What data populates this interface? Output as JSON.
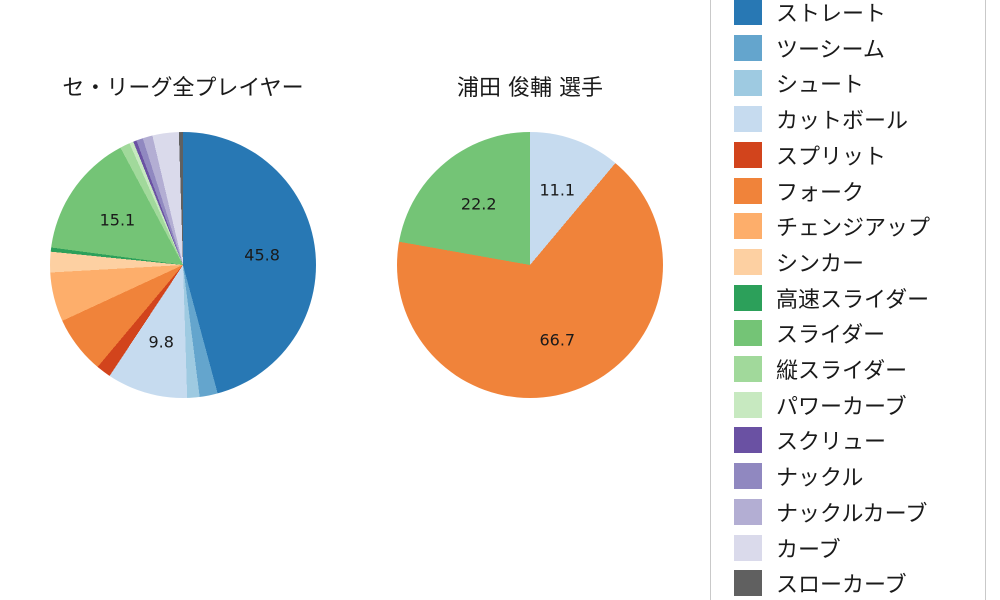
{
  "chart_data": [
    {
      "type": "pie",
      "title": "セ・リーグ全プレイヤー",
      "direction": "clockwise",
      "start_angle": "top",
      "slices": [
        {
          "label": "ストレート",
          "value": 45.8,
          "pct_label": "45.8"
        },
        {
          "label": "ツーシーム",
          "value": 2.2
        },
        {
          "label": "シュート",
          "value": 1.5
        },
        {
          "label": "カットボール",
          "value": 9.8,
          "pct_label": "9.8"
        },
        {
          "label": "スプリット",
          "value": 1.8
        },
        {
          "label": "フォーク",
          "value": 7.0
        },
        {
          "label": "チェンジアップ",
          "value": 6.0
        },
        {
          "label": "シンカー",
          "value": 2.5
        },
        {
          "label": "高速スライダー",
          "value": 0.5
        },
        {
          "label": "スライダー",
          "value": 15.1,
          "pct_label": "15.1"
        },
        {
          "label": "縦スライダー",
          "value": 1.2
        },
        {
          "label": "パワーカーブ",
          "value": 0.5
        },
        {
          "label": "スクリュー",
          "value": 0.4
        },
        {
          "label": "ナックル",
          "value": 0.8
        },
        {
          "label": "ナックルカーブ",
          "value": 1.2
        },
        {
          "label": "カーブ",
          "value": 3.2
        },
        {
          "label": "スローカーブ",
          "value": 0.5
        }
      ]
    },
    {
      "type": "pie",
      "title": "浦田 俊輔 選手",
      "direction": "clockwise",
      "start_angle": "top",
      "slices": [
        {
          "label": "カットボール",
          "value": 11.1,
          "pct_label": "11.1"
        },
        {
          "label": "フォーク",
          "value": 66.7,
          "pct_label": "66.7"
        },
        {
          "label": "スライダー",
          "value": 22.2,
          "pct_label": "22.2"
        }
      ]
    }
  ],
  "legend": {
    "position": "right",
    "items": [
      {
        "label": "ストレート",
        "color": "#2878b4"
      },
      {
        "label": "ツーシーム",
        "color": "#64a5cd"
      },
      {
        "label": "シュート",
        "color": "#9ecae1"
      },
      {
        "label": "カットボール",
        "color": "#c6dbef"
      },
      {
        "label": "スプリット",
        "color": "#d2441c"
      },
      {
        "label": "フォーク",
        "color": "#f0833a"
      },
      {
        "label": "チェンジアップ",
        "color": "#fdae6b"
      },
      {
        "label": "シンカー",
        "color": "#fdd0a2"
      },
      {
        "label": "高速スライダー",
        "color": "#2ca05a"
      },
      {
        "label": "スライダー",
        "color": "#74c476"
      },
      {
        "label": "縦スライダー",
        "color": "#a1d99b"
      },
      {
        "label": "パワーカーブ",
        "color": "#c7e9c0"
      },
      {
        "label": "スクリュー",
        "color": "#6a51a3"
      },
      {
        "label": "ナックル",
        "color": "#9088c0"
      },
      {
        "label": "ナックルカーブ",
        "color": "#b3aed3"
      },
      {
        "label": "カーブ",
        "color": "#dadaeb"
      },
      {
        "label": "スローカーブ",
        "color": "#606060"
      }
    ]
  }
}
